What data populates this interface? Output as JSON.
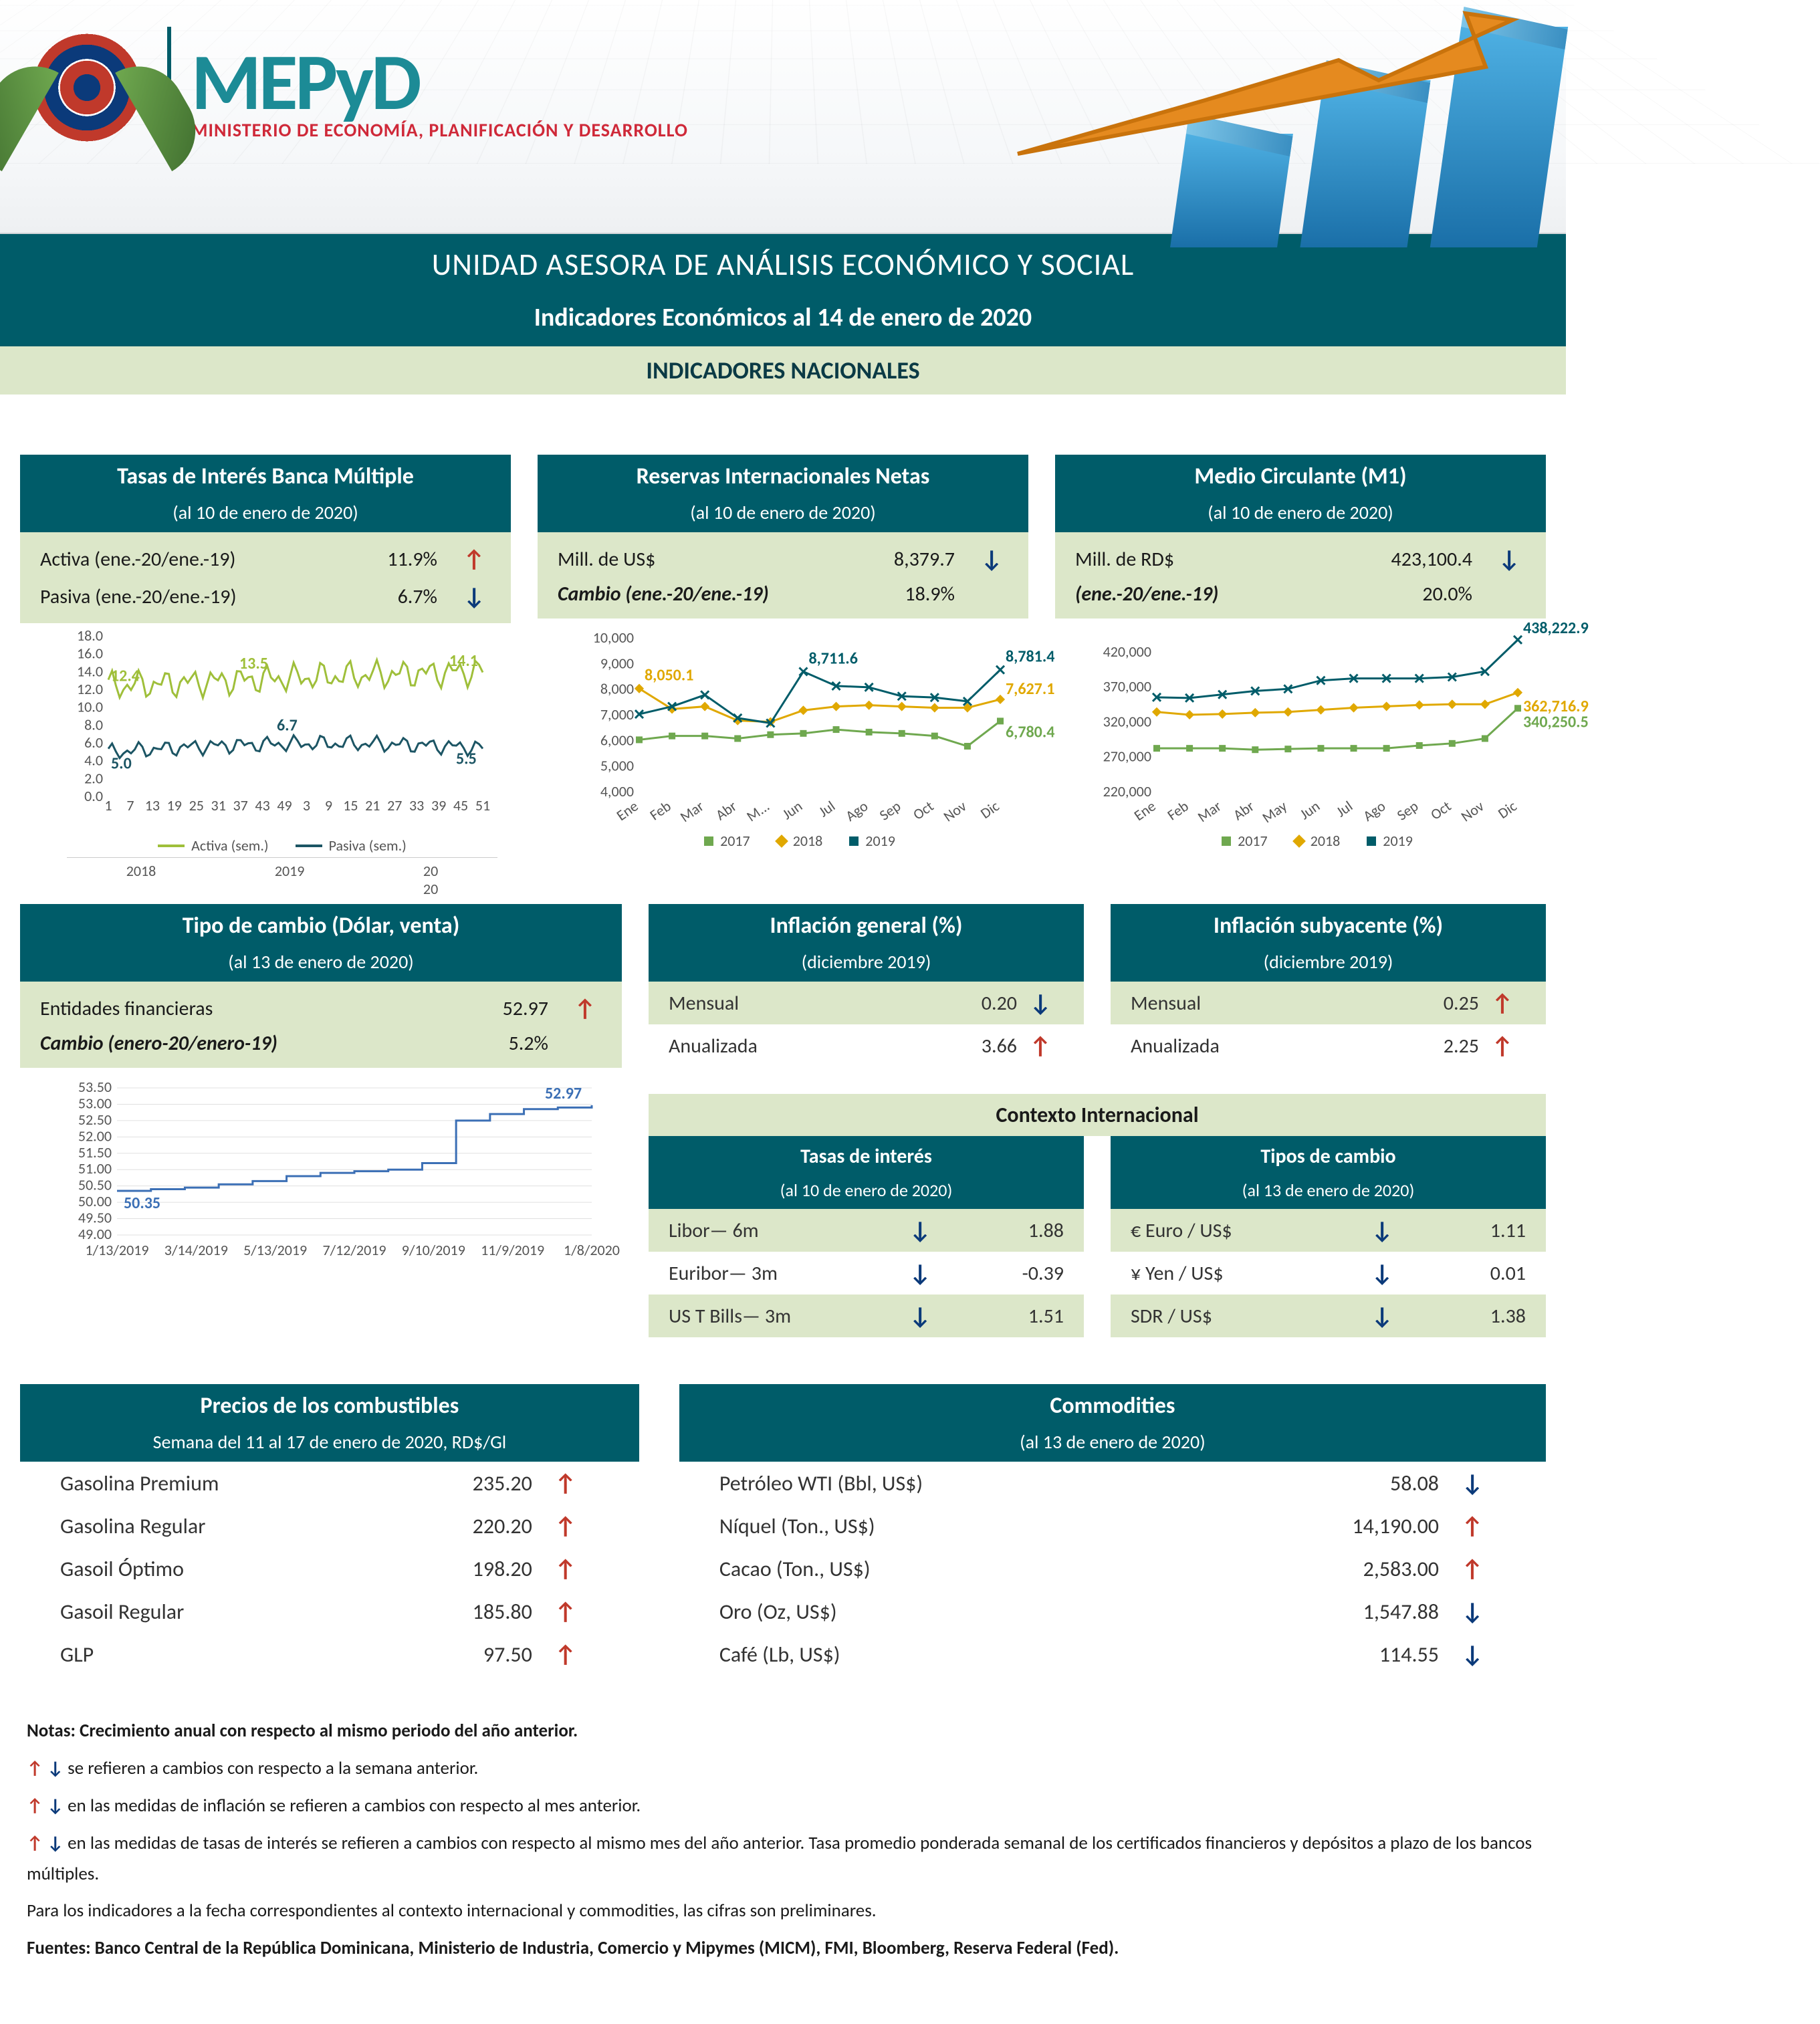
{
  "header": {
    "brand": "MEPyD",
    "tagline": "MINISTERIO DE ECONOMÍA, PLANIFICACIÓN Y DESARROLLO",
    "title": "UNIDAD ASESORA DE ANÁLISIS ECONÓMICO Y SOCIAL",
    "subtitle": "Indicadores Económicos al  14 de enero de 2020",
    "section": "INDICADORES NACIONALES"
  },
  "colors": {
    "teal": "#005c69",
    "olive": "#dce7c9",
    "up": "#c0392b",
    "down": "#0b3a7a",
    "series2017": "#6fa84f",
    "series2018": "#e0a800",
    "series2019": "#005c69",
    "tcline": "#3b6fb5",
    "activa": "#9fbf3a",
    "pasiva": "#1c5564"
  },
  "cards": {
    "tasas": {
      "title": "Tasas de Interés Banca Múltiple",
      "date": "(al 10 de enero de 2020)",
      "rows": [
        {
          "label": "Activa (ene.-20/ene.-19)",
          "val": "11.9%",
          "dir": "up"
        },
        {
          "label": "Pasiva (ene.-20/ene.-19)",
          "val": "6.7%",
          "dir": "down"
        }
      ],
      "chart": {
        "yticks": [
          "0.0",
          "2.0",
          "4.0",
          "6.0",
          "8.0",
          "10.0",
          "12.0",
          "14.0",
          "16.0",
          "18.0"
        ],
        "ylim": [
          0,
          18
        ],
        "activa_start": "12.4",
        "activa_mid": "13.5",
        "activa_end": "14.1",
        "pasiva_start": "5.0",
        "pasiva_mid": "6.7",
        "pasiva_end": "5.5",
        "xlabels": [
          "1",
          "7",
          "13",
          "19",
          "25",
          "31",
          "37",
          "43",
          "49",
          "3",
          "9",
          "15",
          "21",
          "27",
          "33",
          "39",
          "45",
          "51"
        ],
        "xgroup": [
          "2018",
          "2019",
          "20\n20"
        ],
        "legend": [
          "Activa (sem.)",
          "Pasiva (sem.)"
        ]
      }
    },
    "reservas": {
      "title": "Reservas Internacionales Netas",
      "date": "(al 10 de enero de 2020)",
      "rows": [
        {
          "label": "Mill. de US$",
          "val": "8,379.7",
          "dir": "down"
        },
        {
          "label": "Cambio (ene.-20/ene.-19)",
          "val": "18.9%",
          "italic": true
        }
      ],
      "chart": {
        "yticks": [
          "4,000",
          "5,000",
          "6,000",
          "7,000",
          "8,000",
          "9,000",
          "10,000"
        ],
        "ylim": [
          4000,
          10000
        ],
        "months": [
          "Ene",
          "Feb",
          "Mar",
          "Abr",
          "M...",
          "Jun",
          "Jul",
          "Ago",
          "Sep",
          "Oct",
          "Nov",
          "Dic"
        ],
        "s2017": [
          6050,
          6200,
          6200,
          6100,
          6250,
          6300,
          6450,
          6350,
          6300,
          6200,
          5800,
          6780.4
        ],
        "s2018": [
          8050.1,
          7250,
          7350,
          6800,
          6750,
          7200,
          7350,
          7400,
          7350,
          7300,
          7300,
          7627.1
        ],
        "s2019": [
          7050,
          7350,
          7800,
          6900,
          6700,
          8711.6,
          8150,
          8100,
          7750,
          7700,
          7550,
          8781.4
        ],
        "callouts": {
          "c2017": "6,780.4",
          "c2018_start": "8,050.1",
          "c2018": "7,627.1",
          "c2019_mid": "8,711.6",
          "c2019": "8,781.4"
        },
        "legend": [
          "2017",
          "2018",
          "2019"
        ]
      }
    },
    "m1": {
      "title": "Medio Circulante (M1)",
      "date": "(al 10 de enero de 2020)",
      "rows": [
        {
          "label": "Mill. de RD$",
          "val": "423,100.4",
          "dir": "down"
        },
        {
          "label": "(ene.-20/ene.-19)",
          "val": "20.0%",
          "italic": true
        }
      ],
      "chart": {
        "yticks": [
          "220,000",
          "270,000",
          "320,000",
          "370,000",
          "420,000"
        ],
        "ylim": [
          220000,
          440000
        ],
        "months": [
          "Ene",
          "Feb",
          "Mar",
          "Abr",
          "May",
          "Jun",
          "Jul",
          "Ago",
          "Sep",
          "Oct",
          "Nov",
          "Dic"
        ],
        "s2017": [
          283000,
          283000,
          283000,
          281000,
          282000,
          283000,
          283000,
          283000,
          287000,
          290000,
          297000,
          340250.5
        ],
        "s2018": [
          335000,
          331000,
          332000,
          334000,
          335000,
          338000,
          341000,
          343000,
          345000,
          346000,
          346000,
          362716.9
        ],
        "s2019": [
          356000,
          355000,
          360000,
          365000,
          368000,
          380000,
          383000,
          383000,
          383000,
          385000,
          393000,
          438222.9
        ],
        "callouts": {
          "c2017": "340,250.5",
          "c2018": "362,716.9",
          "c2019": "438,222.9"
        },
        "legend": [
          "2017",
          "2018",
          "2019"
        ]
      }
    },
    "tc": {
      "title": "Tipo de cambio (Dólar, venta)",
      "date": "(al 13 de enero de 2020)",
      "rows": [
        {
          "label": "Entidades financieras",
          "val": "52.97",
          "dir": "up"
        },
        {
          "label": "Cambio (enero-20/enero-19)",
          "val": "5.2%",
          "italic": true
        }
      ],
      "chart": {
        "yticks": [
          "49.00",
          "49.50",
          "50.00",
          "50.50",
          "51.00",
          "51.50",
          "52.00",
          "52.50",
          "53.00",
          "53.50"
        ],
        "ylim": [
          49,
          53.5
        ],
        "xlabels": [
          "1/13/2019",
          "3/14/2019",
          "5/13/2019",
          "7/12/2019",
          "9/10/2019",
          "11/9/2019",
          "1/8/2020"
        ],
        "start": "50.35",
        "end": "52.97",
        "series": [
          50.35,
          50.4,
          50.45,
          50.55,
          50.65,
          50.8,
          50.9,
          50.95,
          51.0,
          51.2,
          52.5,
          52.7,
          52.85,
          52.9,
          52.97
        ]
      }
    },
    "infl_gen": {
      "title": "Inflación general (%)",
      "date": "(diciembre 2019)",
      "rows": [
        {
          "label": "Mensual",
          "val": "0.20",
          "dir": "down"
        },
        {
          "label": "Anualizada",
          "val": "3.66",
          "dir": "up"
        }
      ]
    },
    "infl_sub": {
      "title": "Inflación subyacente (%)",
      "date": "(diciembre 2019)",
      "rows": [
        {
          "label": "Mensual",
          "val": "0.25",
          "dir": "up"
        },
        {
          "label": "Anualizada",
          "val": "2.25",
          "dir": "up"
        }
      ]
    },
    "context": {
      "section": "Contexto Internacional",
      "interest": {
        "title": "Tasas de interés",
        "date": "(al 10 de enero de 2020)",
        "rows": [
          {
            "label": "Libor— 6m",
            "dir": "down",
            "val": "1.88"
          },
          {
            "label": "Euribor— 3m",
            "dir": "down",
            "val": "-0.39"
          },
          {
            "label": "US T Bills— 3m",
            "dir": "down",
            "val": "1.51"
          }
        ]
      },
      "fx": {
        "title": "Tipos de cambio",
        "date": "(al 13 de enero de 2020)",
        "rows": [
          {
            "label": "€ Euro / US$",
            "dir": "down",
            "val": "1.11"
          },
          {
            "label": "¥ Yen / US$",
            "dir": "down",
            "val": "0.01"
          },
          {
            "label": "SDR / US$",
            "dir": "down",
            "val": "1.38"
          }
        ]
      }
    },
    "fuels": {
      "title": "Precios de los combustibles",
      "date": "Semana del 11 al 17 de enero de 2020, RD$/Gl",
      "rows": [
        {
          "label": "Gasolina Premium",
          "val": "235.20",
          "dir": "up"
        },
        {
          "label": "Gasolina Regular",
          "val": "220.20",
          "dir": "up"
        },
        {
          "label": "Gasoil Óptimo",
          "val": "198.20",
          "dir": "up"
        },
        {
          "label": "Gasoil Regular",
          "val": "185.80",
          "dir": "up"
        },
        {
          "label": "GLP",
          "val": "97.50",
          "dir": "up"
        }
      ]
    },
    "comm": {
      "title": "Commodities",
      "date": "(al 13 de enero de 2020)",
      "rows": [
        {
          "label": "Petróleo WTI (Bbl, US$)",
          "val": "58.08",
          "dir": "down"
        },
        {
          "label": "Níquel (Ton., US$)",
          "val": "14,190.00",
          "dir": "up"
        },
        {
          "label": "Cacao (Ton., US$)",
          "val": "2,583.00",
          "dir": "up"
        },
        {
          "label": "Oro (Oz, US$)",
          "val": "1,547.88",
          "dir": "down"
        },
        {
          "label": "Café (Lb, US$)",
          "val": "114.55",
          "dir": "down"
        }
      ]
    }
  },
  "notes": {
    "n1": "Notas: Crecimiento anual con respecto al mismo periodo del año anterior.",
    "n2": " se refieren a cambios con respecto a la semana anterior.",
    "n3": " en las medidas de inflación se refieren a cambios con respecto al mes anterior.",
    "n4": " en las medidas de tasas de interés se refieren a cambios con respecto al mismo mes del año anterior. Tasa promedio ponderada semanal de los certificados financieros y depósitos a plazo de los bancos múltiples.",
    "n5": "Para los indicadores a la fecha correspondientes al contexto internacional y commodities, las cifras son preliminares.",
    "n6": "Fuentes: Banco Central de la República Dominicana, Ministerio de Industria, Comercio y Mipymes (MICM), FMI, Bloomberg, Reserva Federal (Fed)."
  }
}
